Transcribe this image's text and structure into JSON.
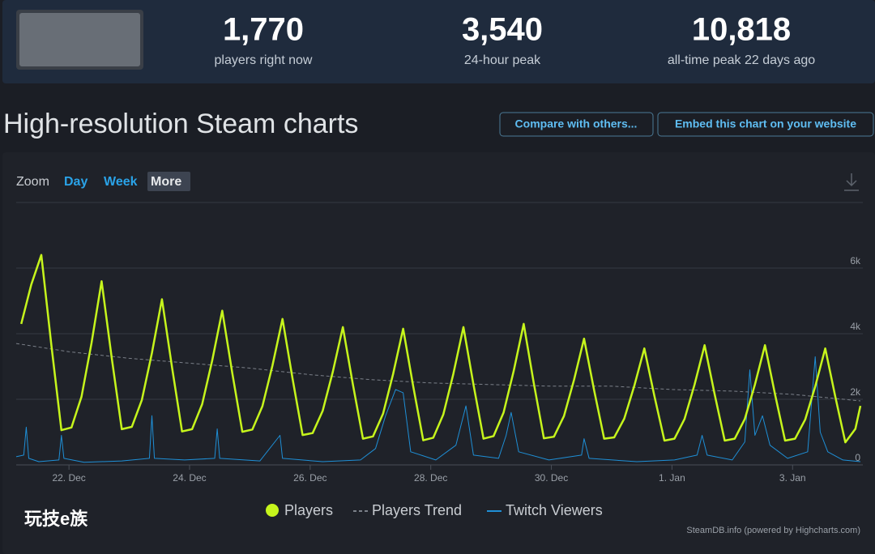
{
  "header": {
    "stats": [
      {
        "value": "1,770",
        "label": "players right now"
      },
      {
        "value": "3,540",
        "label": "24-hour peak"
      },
      {
        "value": "10,818",
        "label": "all-time peak 22 days ago"
      }
    ]
  },
  "title": "High-resolution Steam charts",
  "buttons": [
    "Compare with others...",
    "Embed this chart on your website"
  ],
  "zoom": {
    "label": "Zoom",
    "options": [
      "Day",
      "Week",
      "More"
    ],
    "selected": 2
  },
  "chart_data": {
    "type": "line",
    "xlim": [
      3,
      339
    ],
    "xticks": [
      {
        "value": 24,
        "label": "22. Dec"
      },
      {
        "value": 72,
        "label": "24. Dec"
      },
      {
        "value": 120,
        "label": "26. Dec"
      },
      {
        "value": 168,
        "label": "28. Dec"
      },
      {
        "value": 216,
        "label": "30. Dec"
      },
      {
        "value": 264,
        "label": "1. Jan"
      },
      {
        "value": 312,
        "label": "3. Jan"
      }
    ],
    "ylim": [
      0,
      8000
    ],
    "yticks": [
      {
        "value": 0,
        "label": "0"
      },
      {
        "value": 2000,
        "label": "2k"
      },
      {
        "value": 4000,
        "label": "4k"
      },
      {
        "value": 6000,
        "label": "6k"
      }
    ],
    "grid": true,
    "series": [
      {
        "name": "Players",
        "color": "#c6f51c",
        "line_width": 2.5,
        "x": [
          5,
          9,
          13,
          17,
          21,
          25,
          29,
          33,
          37,
          41,
          45,
          49,
          53,
          57,
          61,
          65,
          69,
          73,
          77,
          81,
          85,
          89,
          93,
          97,
          101,
          105,
          109,
          113,
          117,
          121,
          125,
          129,
          133,
          137,
          141,
          145,
          149,
          153,
          157,
          161,
          165,
          169,
          173,
          177,
          181,
          185,
          189,
          193,
          197,
          201,
          205,
          209,
          213,
          217,
          221,
          225,
          229,
          233,
          237,
          241,
          245,
          249,
          253,
          257,
          261,
          265,
          269,
          273,
          277,
          281,
          285,
          289,
          293,
          297,
          301,
          305,
          309,
          313,
          317,
          321,
          325,
          329,
          333,
          337,
          339
        ],
        "values": [
          4300,
          5500,
          6400,
          3650,
          1060,
          1140,
          2080,
          3720,
          5600,
          3280,
          1090,
          1160,
          1980,
          3410,
          5050,
          2980,
          1020,
          1090,
          1850,
          3180,
          4700,
          2800,
          1010,
          1080,
          1790,
          3030,
          4450,
          2630,
          910,
          970,
          1650,
          2840,
          4200,
          2450,
          800,
          870,
          1560,
          2770,
          4150,
          2400,
          750,
          830,
          1540,
          2780,
          4200,
          2450,
          800,
          880,
          1600,
          2860,
          4300,
          2500,
          810,
          860,
          1490,
          2590,
          3850,
          2280,
          800,
          840,
          1410,
          2410,
          3550,
          2100,
          740,
          800,
          1400,
          2450,
          3650,
          2150,
          740,
          800,
          1400,
          2450,
          3650,
          2150,
          740,
          800,
          1380,
          2390,
          3550,
          2080,
          690,
          1100,
          1800
        ]
      },
      {
        "name": "Players Trend",
        "color": "#7b8089",
        "line_width": 1,
        "dash": true,
        "x": [
          3,
          24,
          48,
          72,
          96,
          120,
          144,
          168,
          192,
          216,
          240,
          264,
          288,
          312,
          339
        ],
        "values": [
          3700,
          3450,
          3250,
          3100,
          2950,
          2750,
          2600,
          2500,
          2450,
          2400,
          2400,
          2300,
          2250,
          2150,
          1950
        ]
      },
      {
        "name": "Twitch Viewers",
        "color": "#1f8fd6",
        "line_width": 1,
        "x": [
          3,
          6,
          7,
          8,
          12,
          20,
          21,
          22,
          30,
          45,
          56,
          57,
          58,
          70,
          82,
          83,
          84,
          100,
          108,
          109,
          125,
          140,
          146,
          150,
          154,
          157,
          160,
          170,
          178,
          182,
          185,
          195,
          198,
          200,
          203,
          215,
          228,
          229,
          231,
          250,
          265,
          274,
          276,
          278,
          288,
          293,
          295,
          297,
          300,
          303,
          310,
          318,
          321,
          323,
          326,
          332,
          339
        ],
        "values": [
          250,
          300,
          1150,
          200,
          100,
          150,
          900,
          200,
          80,
          120,
          200,
          1500,
          200,
          150,
          200,
          1100,
          200,
          120,
          900,
          200,
          100,
          150,
          500,
          1500,
          2300,
          2200,
          400,
          150,
          600,
          1800,
          300,
          200,
          900,
          1600,
          400,
          150,
          300,
          800,
          200,
          100,
          150,
          300,
          900,
          300,
          150,
          700,
          2900,
          900,
          1500,
          600,
          200,
          400,
          3300,
          1000,
          400,
          150,
          100
        ]
      }
    ],
    "credit": "SteamDB.info (powered by Highcharts.com)"
  },
  "watermark": "玩技e族"
}
